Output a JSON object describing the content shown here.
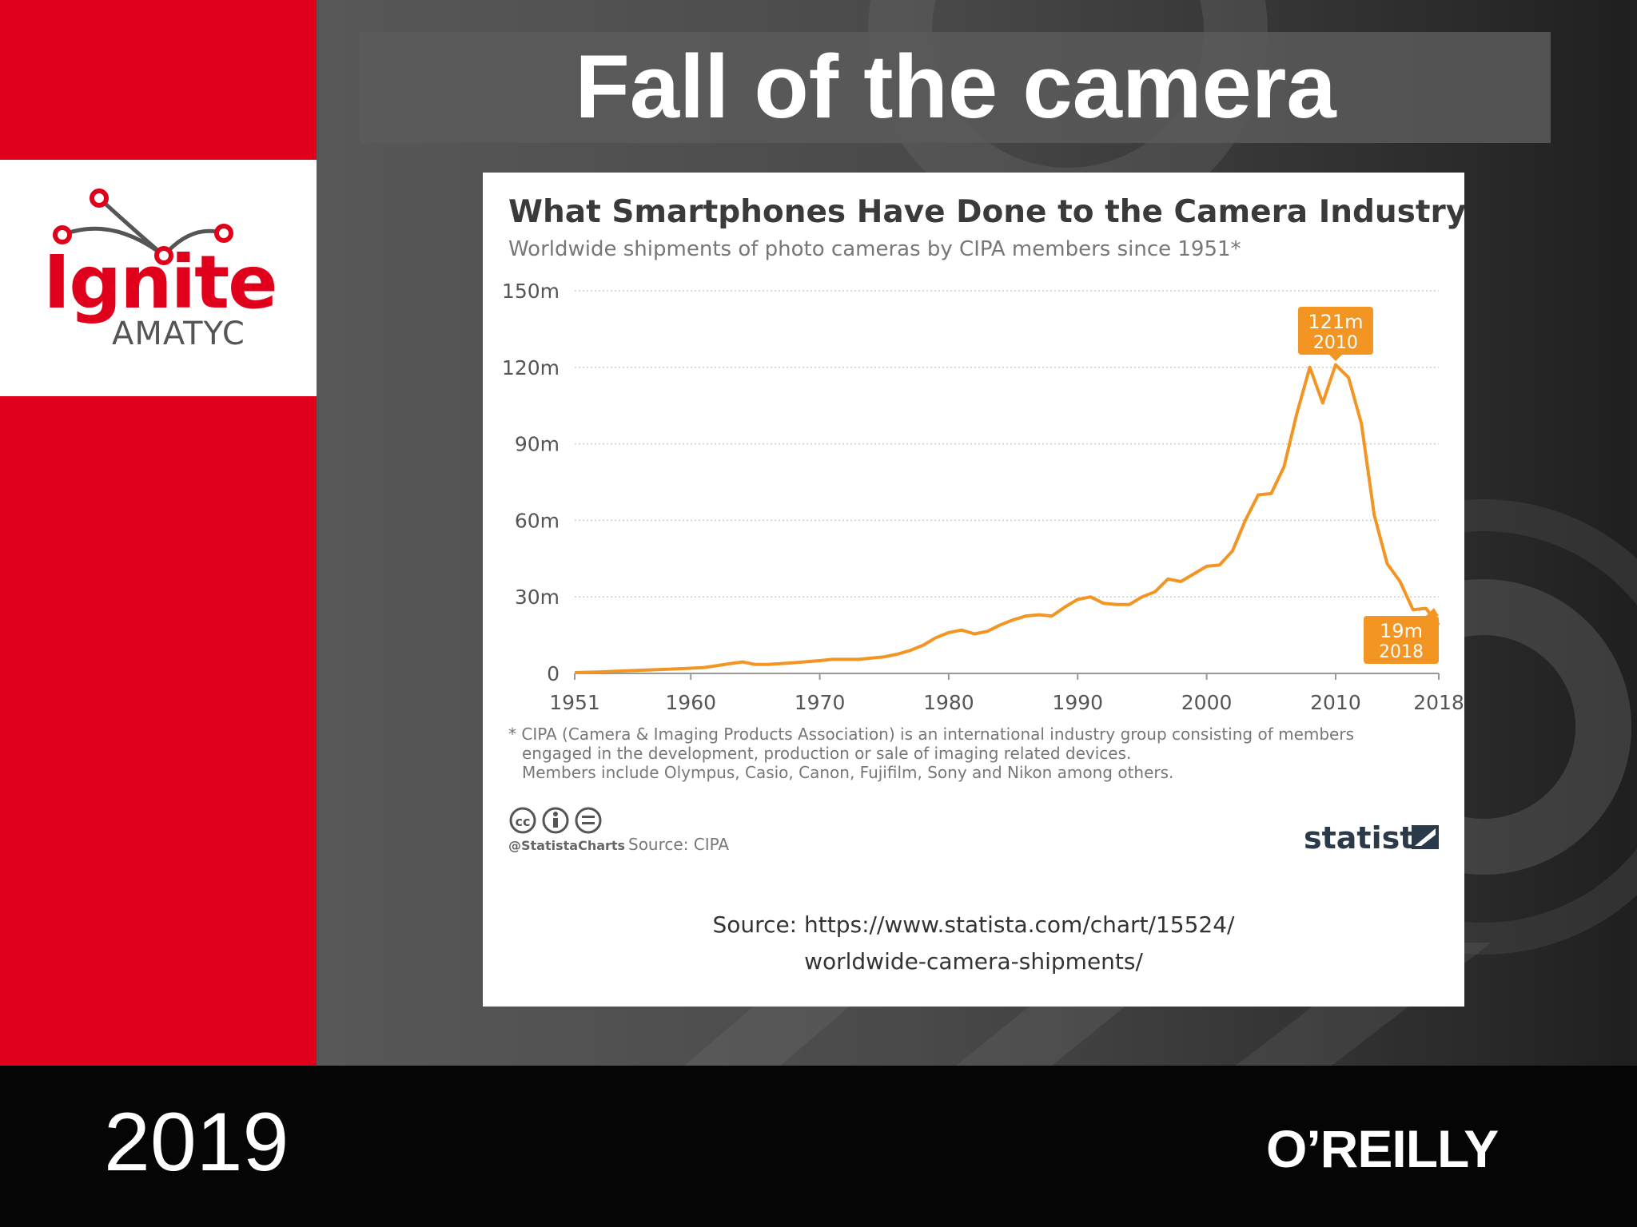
{
  "slide": {
    "title": "Fall of the camera",
    "year": "2019",
    "brand": {
      "logo_word": "Ignite",
      "logo_sub": "AMATYC",
      "publisher": "O’REILLY"
    }
  },
  "colors": {
    "accent_red": "#e0001b",
    "line_orange": "#f39523",
    "footer_black": "#050505"
  },
  "chart_data": {
    "type": "line",
    "title": "What Smartphones Have Done to the Camera Industry",
    "subtitle": "Worldwide shipments of photo cameras by CIPA members since 1951*",
    "y_unit": "m",
    "ylim": [
      0,
      150
    ],
    "yticks": [
      0,
      30,
      60,
      90,
      120,
      150
    ],
    "ytick_labels": [
      "0",
      "30m",
      "60m",
      "90m",
      "120m",
      "150m"
    ],
    "xlim": [
      1951,
      2018
    ],
    "xticks": [
      1951,
      1960,
      1970,
      1980,
      1990,
      2000,
      2010,
      2018
    ],
    "grid": true,
    "series": [
      {
        "x": [
          1951,
          1953,
          1955,
          1957,
          1959,
          1961,
          1962,
          1963,
          1964,
          1965,
          1966,
          1968,
          1970,
          1971,
          1973,
          1975,
          1976,
          1977,
          1978,
          1979,
          1980,
          1981,
          1982,
          1983,
          1984,
          1985,
          1986,
          1987,
          1988,
          1989,
          1990,
          1991,
          1992,
          1993,
          1994,
          1995,
          1996,
          1997,
          1998,
          1999,
          2000,
          2001,
          2002,
          2003,
          2004,
          2005,
          2006,
          2007,
          2008,
          2009,
          2010,
          2011,
          2012,
          2013,
          2014,
          2015,
          2016,
          2017,
          2018
        ],
        "y": [
          0.3,
          0.6,
          1,
          1.4,
          1.8,
          2.3,
          3,
          3.8,
          4.5,
          3.5,
          3.5,
          4.2,
          5,
          5.5,
          5.5,
          6.5,
          7.5,
          9,
          11,
          14,
          16,
          17,
          15.5,
          16.5,
          19,
          21,
          22.5,
          23,
          22.5,
          26,
          29,
          30,
          27.5,
          27,
          27,
          30,
          32,
          37,
          36,
          39,
          42,
          42.5,
          48,
          60,
          70,
          70.5,
          81,
          102,
          120,
          106,
          121,
          116,
          98,
          62,
          43,
          36,
          25,
          25.5,
          19
        ]
      }
    ],
    "annotations": [
      {
        "value": "121m",
        "year": "2010",
        "x": 2010,
        "y": 121
      },
      {
        "value": "19m",
        "year": "2018",
        "x": 2018,
        "y": 19
      }
    ],
    "footnote": [
      "* CIPA (Camera & Imaging Products Association) is an international industry group consisting of members",
      "engaged in the development, production or sale of imaging related devices.",
      "Members include Olympus, Casio, Canon, Fujifilm, Sony and Nikon among others."
    ],
    "handle": "@StatistaCharts",
    "source_label": "Source: CIPA",
    "brand": "statista",
    "source_url_lines": [
      "Source: https://www.statista.com/chart/15524/",
      "worldwide-camera-shipments/"
    ]
  }
}
